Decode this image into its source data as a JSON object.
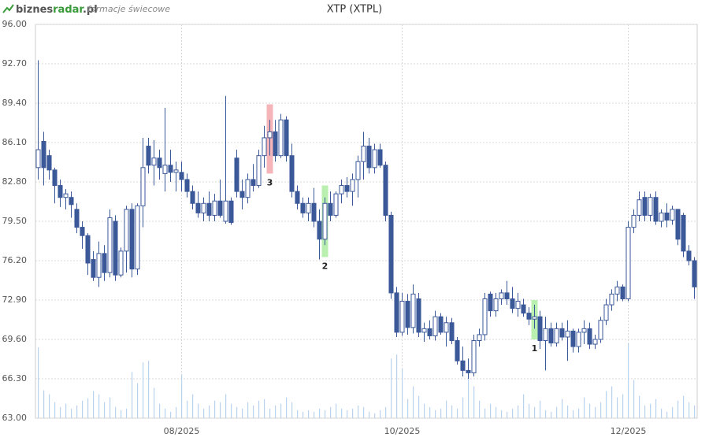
{
  "header": {
    "logo": [
      "biznes",
      "radar",
      ".pl"
    ],
    "subtitle": "formacje świecowe"
  },
  "chart_data": {
    "type": "candlestick",
    "title": "XTP (XTPL)",
    "ylim": [
      63,
      96
    ],
    "yticks": [
      {
        "value": 63,
        "label": "63.00"
      },
      {
        "value": 66.3,
        "label": "66.30"
      },
      {
        "value": 69.6,
        "label": "69.60"
      },
      {
        "value": 72.9,
        "label": "72.90"
      },
      {
        "value": 76.2,
        "label": "76.20"
      },
      {
        "value": 79.5,
        "label": "79.50"
      },
      {
        "value": 82.8,
        "label": "82.80"
      },
      {
        "value": 86.1,
        "label": "86.10"
      },
      {
        "value": 89.4,
        "label": "89.40"
      },
      {
        "value": 92.7,
        "label": "92.70"
      },
      {
        "value": 96,
        "label": "96.00"
      }
    ],
    "xlim": [
      -0.5,
      119.5
    ],
    "xticks": [
      {
        "value": 26,
        "label": "08/2025"
      },
      {
        "value": 66,
        "label": "10/2025"
      },
      {
        "value": 107,
        "label": "12/2025"
      }
    ],
    "grid": true,
    "up_color": "#ffffff",
    "down_color": "#3b5998",
    "volume_color": "#b9d3ee",
    "ohlc": [
      [
        84,
        93,
        83,
        85.5
      ],
      [
        86.2,
        87,
        82.5,
        84
      ],
      [
        85,
        85.5,
        83,
        83.8
      ],
      [
        83.8,
        84,
        81,
        82.5
      ],
      [
        82.5,
        83,
        80.7,
        81.5
      ],
      [
        81.5,
        82.2,
        80.5,
        81.8
      ],
      [
        81.5,
        82,
        79.8,
        80.9
      ],
      [
        80.5,
        81,
        78.5,
        79
      ],
      [
        79,
        79.5,
        77.2,
        78.3
      ],
      [
        78.3,
        78.5,
        75,
        76
      ],
      [
        76.3,
        77,
        74.5,
        74.8
      ],
      [
        74.8,
        77.8,
        74,
        76.8
      ],
      [
        76.8,
        77.5,
        74.5,
        75.2
      ],
      [
        75.2,
        80.5,
        74.8,
        79.8
      ],
      [
        79.5,
        80,
        74.5,
        75
      ],
      [
        75,
        77.3,
        74.8,
        77
      ],
      [
        77,
        80.8,
        75.2,
        80.5
      ],
      [
        80.5,
        81,
        74.8,
        75.5
      ],
      [
        75.5,
        81,
        75,
        80.8
      ],
      [
        80.8,
        86.5,
        79,
        84
      ],
      [
        85.8,
        86.5,
        83.5,
        84.2
      ],
      [
        84.2,
        86.3,
        82.5,
        84.8
      ],
      [
        84.8,
        85.5,
        83,
        84
      ],
      [
        83.5,
        89,
        82,
        84.2
      ],
      [
        84.2,
        85.5,
        82.8,
        83.6
      ],
      [
        83.6,
        84.5,
        82,
        83.8
      ],
      [
        83.6,
        84.5,
        82,
        83
      ],
      [
        83,
        83.5,
        81.5,
        82
      ],
      [
        82,
        82.5,
        80.5,
        81
      ],
      [
        81,
        82,
        79.8,
        80.2
      ],
      [
        80.2,
        81.5,
        79.5,
        81
      ],
      [
        81,
        82,
        79.5,
        80
      ],
      [
        80,
        81.8,
        79.5,
        81.2
      ],
      [
        81.2,
        83,
        79.8,
        80
      ],
      [
        79.5,
        90,
        79.3,
        81.2
      ],
      [
        81.2,
        81.5,
        79.2,
        79.4
      ],
      [
        84.8,
        85.5,
        81.5,
        82
      ],
      [
        82,
        83,
        80.5,
        81.5
      ],
      [
        81.5,
        83.5,
        81,
        83
      ],
      [
        83,
        84.3,
        82,
        82.5
      ],
      [
        82.5,
        85.5,
        82.3,
        85
      ],
      [
        85,
        87.5,
        84,
        86.5
      ],
      [
        86.5,
        88,
        85,
        87
      ],
      [
        87,
        88,
        84.5,
        85
      ],
      [
        85,
        88.5,
        84.8,
        88
      ],
      [
        88,
        88.3,
        84.5,
        85
      ],
      [
        85,
        86,
        81.5,
        82
      ],
      [
        82,
        82.5,
        80.5,
        81
      ],
      [
        81,
        81.5,
        79.8,
        80.2
      ],
      [
        80.2,
        81.5,
        79.5,
        81
      ],
      [
        81,
        82.3,
        79,
        79.5
      ],
      [
        79.5,
        80.5,
        76.3,
        78
      ],
      [
        78,
        81.5,
        77.5,
        81
      ],
      [
        81,
        82,
        79.5,
        80
      ],
      [
        80,
        82,
        79.8,
        81.8
      ],
      [
        81.8,
        83,
        81,
        82.5
      ],
      [
        82.5,
        83.2,
        81.5,
        82
      ],
      [
        82,
        83.5,
        80.8,
        83
      ],
      [
        83,
        85,
        81.5,
        84.5
      ],
      [
        84.5,
        87,
        83,
        85.8
      ],
      [
        85.8,
        86.5,
        83.5,
        84
      ],
      [
        84,
        86,
        83.5,
        85.5
      ],
      [
        85.5,
        86,
        84,
        84.2
      ],
      [
        84.2,
        84.5,
        79.5,
        80
      ],
      [
        80,
        80.3,
        73,
        73.5
      ],
      [
        73.5,
        74,
        69.8,
        70.2
      ],
      [
        70.2,
        73.5,
        69.9,
        72.8
      ],
      [
        72.8,
        73.4,
        70,
        70.6
      ],
      [
        70.6,
        74.2,
        70.1,
        73.4
      ],
      [
        73,
        73.5,
        69.8,
        70.2
      ],
      [
        70.2,
        71,
        69.4,
        70.5
      ],
      [
        70.5,
        71.2,
        69.6,
        69.9
      ],
      [
        69.9,
        72,
        69.5,
        71.5
      ],
      [
        71.5,
        71.8,
        70,
        70.2
      ],
      [
        70.2,
        71.5,
        69,
        71
      ],
      [
        71,
        71.4,
        69.2,
        69.5
      ],
      [
        69.5,
        69.8,
        67.5,
        67.8
      ],
      [
        67.8,
        69,
        66.5,
        67
      ],
      [
        67,
        68,
        66.3,
        66.8
      ],
      [
        66.8,
        70,
        66.5,
        69.5
      ],
      [
        69.5,
        70.5,
        69,
        70
      ],
      [
        70,
        73.5,
        69.5,
        73
      ],
      [
        73.4,
        73.6,
        71.5,
        72
      ],
      [
        72,
        73.5,
        71.5,
        73
      ],
      [
        73,
        73.8,
        72.5,
        73.5
      ],
      [
        73.5,
        74.5,
        72.5,
        73
      ],
      [
        73,
        74,
        71.8,
        72.2
      ],
      [
        72.2,
        73.5,
        71.5,
        72.8
      ],
      [
        72.5,
        73,
        71.5,
        71.8
      ],
      [
        71.8,
        72.3,
        70.8,
        71.3
      ],
      [
        71.3,
        72.5,
        70.5,
        71.5
      ],
      [
        71.5,
        72,
        68.8,
        69.5
      ],
      [
        69.5,
        71.5,
        67,
        70.5
      ],
      [
        70.5,
        71,
        69,
        69.3
      ],
      [
        69.3,
        71,
        69,
        70.5
      ],
      [
        70.5,
        71,
        69.5,
        69.8
      ],
      [
        69.8,
        71.2,
        67.8,
        70.3
      ],
      [
        70.3,
        70.5,
        68.5,
        69
      ],
      [
        69,
        70.5,
        68.5,
        70.2
      ],
      [
        70.2,
        71.2,
        69.2,
        70.5
      ],
      [
        70.5,
        71,
        68.8,
        69.2
      ],
      [
        69.2,
        70,
        68.8,
        69.6
      ],
      [
        69.6,
        71.5,
        69.3,
        71.2
      ],
      [
        71.2,
        73,
        70.8,
        72.5
      ],
      [
        72.5,
        73.8,
        72,
        73.4
      ],
      [
        73.4,
        74.5,
        72.8,
        74
      ],
      [
        74,
        74.2,
        72.8,
        73
      ],
      [
        73,
        79.5,
        72.8,
        79
      ],
      [
        79,
        80.5,
        78.5,
        80
      ],
      [
        80,
        82,
        79.5,
        81.3
      ],
      [
        81.5,
        82,
        79.5,
        80
      ],
      [
        80,
        81.8,
        79.5,
        81.5
      ],
      [
        81.5,
        82,
        79.2,
        79.5
      ],
      [
        79.5,
        80.5,
        79,
        80.2
      ],
      [
        80.2,
        81,
        79,
        79.6
      ],
      [
        79.6,
        80.8,
        79.2,
        80.5
      ],
      [
        80.5,
        80.5,
        77.5,
        78
      ],
      [
        80,
        80.2,
        76.5,
        77
      ],
      [
        77,
        77.5,
        75.8,
        76.2
      ],
      [
        76.2,
        76.5,
        73,
        74
      ]
    ],
    "volume": [
      89,
      35,
      30,
      20,
      14,
      18,
      12,
      16,
      22,
      25,
      34,
      30,
      20,
      26,
      14,
      10,
      12,
      58,
      44,
      70,
      72,
      38,
      18,
      12,
      8,
      14,
      55,
      22,
      30,
      18,
      12,
      16,
      22,
      20,
      30,
      18,
      14,
      12,
      20,
      16,
      22,
      24,
      12,
      16,
      18,
      26,
      20,
      10,
      8,
      10,
      8,
      12,
      10,
      14,
      18,
      12,
      10,
      12,
      16,
      14,
      8,
      6,
      10,
      14,
      75,
      80,
      62,
      24,
      40,
      28,
      18,
      14,
      10,
      12,
      22,
      16,
      12,
      26,
      64,
      40,
      22,
      12,
      18,
      14,
      10,
      8,
      12,
      16,
      30,
      18,
      14,
      22,
      10,
      8,
      14,
      24,
      16,
      10,
      12,
      26,
      18,
      14,
      20,
      34,
      40,
      26,
      30,
      94,
      48,
      28,
      16,
      18,
      24,
      12,
      8,
      14,
      22,
      28,
      20,
      16
    ],
    "patterns": [
      {
        "index": 42,
        "label": "3",
        "low": 83.5,
        "high": 89.3,
        "color": "#f5b5b8"
      },
      {
        "index": 52,
        "label": "2",
        "low": 76.5,
        "high": 82.5,
        "color": "#b9f0b0"
      },
      {
        "index": 90,
        "label": "1",
        "low": 69.6,
        "high": 72.9,
        "color": "#b9f0b0"
      }
    ]
  }
}
